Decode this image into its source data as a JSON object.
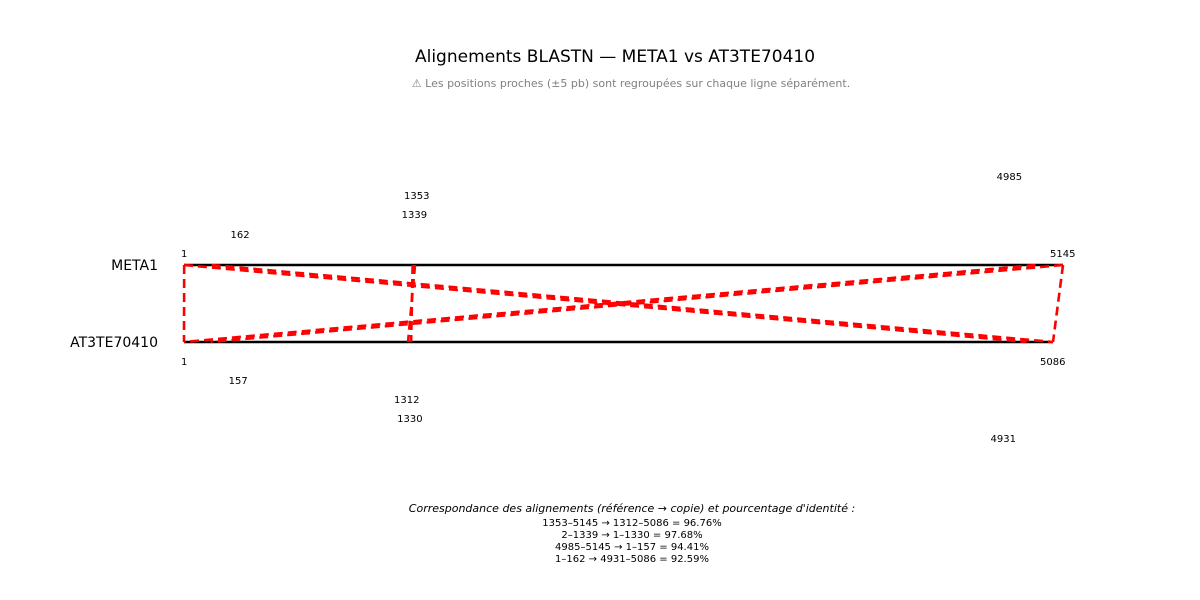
{
  "title": "Alignements BLASTN — META1 vs AT3TE70410",
  "subtitle": "⚠ Les positions proches (±5 pb) sont regroupées sur chaque ligne séparément.",
  "sequences": {
    "reference": {
      "name": "META1",
      "length": 5145
    },
    "copy": {
      "name": "AT3TE70410",
      "length": 5086
    }
  },
  "reference_labels": [
    "1",
    "162",
    "1339",
    "1353",
    "4985",
    "5145"
  ],
  "copy_labels": [
    "1",
    "157",
    "1312",
    "1330",
    "4931",
    "5086"
  ],
  "alignments": [
    {
      "ref_start": 1353,
      "ref_end": 5145,
      "copy_start": 1312,
      "copy_end": 5086,
      "identity": 96.76
    },
    {
      "ref_start": 2,
      "ref_end": 1339,
      "copy_start": 1,
      "copy_end": 1330,
      "identity": 97.68
    },
    {
      "ref_start": 4985,
      "ref_end": 5145,
      "copy_start": 1,
      "copy_end": 157,
      "identity": 94.41
    },
    {
      "ref_start": 1,
      "ref_end": 162,
      "copy_start": 4931,
      "copy_end": 5086,
      "identity": 92.59
    }
  ],
  "colors": {
    "alignment": "#ff0000",
    "sequence_line": "#000000"
  },
  "footer": {
    "heading": "Correspondance des alignements (référence → copie) et pourcentage d'identité :",
    "lines": [
      "1353–5145 → 1312–5086 = 96.76%",
      "2–1339 → 1–1330 = 97.68%",
      "4985–5145 → 1–157 = 94.41%",
      "1–162 → 4931–5086 = 92.59%"
    ]
  }
}
